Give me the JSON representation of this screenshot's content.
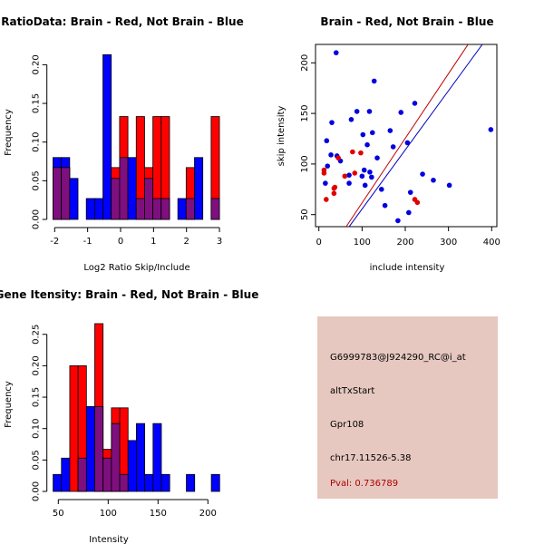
{
  "chart_data": [
    {
      "type": "bar",
      "subtype": "overlaid-histogram",
      "title": "RatioData: Brain - Red, Not Brain - Blue",
      "xlabel": "Log2 Ratio Skip/Include",
      "ylabel": "Frequency",
      "xlim": [
        -2.05,
        3.0
      ],
      "ylim": [
        0,
        0.22
      ],
      "bin_start": -2.05,
      "bin_width": 0.2525,
      "xticks": [
        "-2",
        "-1",
        "0",
        "1",
        "2",
        "3"
      ],
      "xtick_values": [
        -2,
        -1,
        0,
        1,
        2,
        3
      ],
      "yticks": [
        "0.00",
        "0.05",
        "0.10",
        "0.15",
        "0.20"
      ],
      "ytick_values": [
        0,
        0.05,
        0.1,
        0.15,
        0.2
      ],
      "series": [
        {
          "name": "Not Brain",
          "color": "#0000ff",
          "values": [
            0.08,
            0.08,
            0.053,
            0,
            0.027,
            0.027,
            0.213,
            0.053,
            0.08,
            0.08,
            0.027,
            0.053,
            0.027,
            0.027,
            0,
            0.027,
            0.027,
            0.08,
            0,
            0.027
          ]
        },
        {
          "name": "Brain",
          "color": "#ff0000",
          "values": [
            0.067,
            0.067,
            0,
            0,
            0,
            0,
            0,
            0.067,
            0.133,
            0,
            0.133,
            0.067,
            0.133,
            0.133,
            0,
            0,
            0.067,
            0,
            0,
            0.133
          ]
        }
      ],
      "overlap_color": "#7f0f7f"
    },
    {
      "type": "scatter",
      "title": "Brain - Red, Not Brain - Blue",
      "xlabel": "include intensity",
      "ylabel": "skip intensity",
      "xlim": [
        -8,
        412
      ],
      "ylim": [
        38,
        218
      ],
      "xticks": [
        "0",
        "100",
        "200",
        "300",
        "400"
      ],
      "xtick_values": [
        0,
        100,
        200,
        300,
        400
      ],
      "yticks": [
        "50",
        "100",
        "150",
        "200"
      ],
      "ytick_values": [
        50,
        100,
        150,
        200
      ],
      "series": [
        {
          "name": "Not Brain",
          "color": "#0000e0",
          "points": [
            [
              40,
              210
            ],
            [
              128,
              182
            ],
            [
              222,
              160
            ],
            [
              88,
              152
            ],
            [
              117,
              152
            ],
            [
              190,
              151
            ],
            [
              75,
              144
            ],
            [
              30,
              141
            ],
            [
              165,
              133
            ],
            [
              398,
              134
            ],
            [
              124,
              131
            ],
            [
              102,
              129
            ],
            [
              112,
              119
            ],
            [
              205,
              121
            ],
            [
              172,
              117
            ],
            [
              18,
              123
            ],
            [
              28,
              109
            ],
            [
              42,
              108
            ],
            [
              50,
              103
            ],
            [
              135,
              106
            ],
            [
              20,
              98
            ],
            [
              105,
              94
            ],
            [
              118,
              92
            ],
            [
              100,
              88
            ],
            [
              122,
              87
            ],
            [
              70,
              89
            ],
            [
              240,
              90
            ],
            [
              265,
              84
            ],
            [
              15,
              81
            ],
            [
              70,
              81
            ],
            [
              107,
              79
            ],
            [
              302,
              79
            ],
            [
              145,
              75
            ],
            [
              212,
              72
            ],
            [
              153,
              59
            ],
            [
              208,
              52
            ],
            [
              183,
              44
            ]
          ]
        },
        {
          "name": "Brain",
          "color": "#e00000",
          "points": [
            [
              78,
              112
            ],
            [
              97,
              111
            ],
            [
              45,
              106
            ],
            [
              12,
              94
            ],
            [
              12,
              91
            ],
            [
              83,
              91
            ],
            [
              60,
              88
            ],
            [
              35,
              76
            ],
            [
              37,
              77
            ],
            [
              35,
              71
            ],
            [
              17,
              65
            ],
            [
              222,
              65
            ],
            [
              228,
              62
            ]
          ]
        }
      ],
      "lines": [
        {
          "name": "Brain fit",
          "color": "#c00000",
          "from": [
            63,
            38
          ],
          "to": [
            345,
            218
          ]
        },
        {
          "name": "Not Brain fit",
          "color": "#0000c0",
          "from": [
            70,
            38
          ],
          "to": [
            378,
            218
          ]
        }
      ]
    },
    {
      "type": "bar",
      "subtype": "overlaid-histogram",
      "title": "Gene Itensity: Brain - Red, Not Brain - Blue",
      "xlabel": "Intensity",
      "ylabel": "Frequency",
      "xlim": [
        44.8,
        211.8
      ],
      "ylim": [
        0,
        0.27
      ],
      "bin_start": 44.8,
      "bin_width": 8.35,
      "xticks": [
        "50",
        "100",
        "150",
        "200"
      ],
      "xtick_values": [
        50,
        100,
        150,
        200
      ],
      "yticks": [
        "0.00",
        "0.05",
        "0.10",
        "0.15",
        "0.20",
        "0.25"
      ],
      "ytick_values": [
        0,
        0.05,
        0.1,
        0.15,
        0.2,
        0.25
      ],
      "series": [
        {
          "name": "Not Brain",
          "color": "#0000ff",
          "values": [
            0.027,
            0.053,
            0,
            0.053,
            0.135,
            0.135,
            0.053,
            0.108,
            0.027,
            0.081,
            0.108,
            0.027,
            0.108,
            0.027,
            0,
            0,
            0.027,
            0,
            0,
            0.027
          ]
        },
        {
          "name": "Brain",
          "color": "#ff0000",
          "values": [
            0,
            0,
            0.2,
            0.2,
            0,
            0.267,
            0.067,
            0.133,
            0.133,
            0,
            0,
            0,
            0,
            0,
            0,
            0,
            0,
            0,
            0,
            0
          ]
        }
      ],
      "overlap_color": "#7f0f7f"
    }
  ],
  "info_panel": {
    "probe_id": "G6999783@J924290_RC@i_at",
    "event_type": "altTxStart",
    "gene": "Gpr108",
    "location": "chr17.11526-5.38",
    "pval": "Pval: 0.736789",
    "background": "#e6c8c0",
    "pval_color": "#b00000"
  }
}
